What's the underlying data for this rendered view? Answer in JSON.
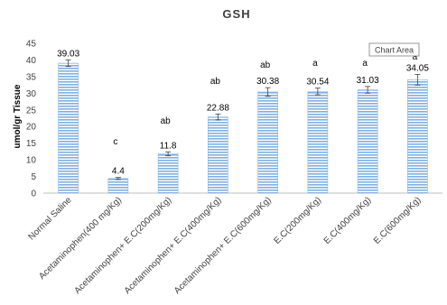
{
  "chart_data": {
    "type": "bar",
    "title": "GSH",
    "ylabel": "umol/gr Tissue",
    "xlabel": "",
    "ylim": [
      0,
      45
    ],
    "yticks": [
      0,
      5,
      10,
      15,
      20,
      25,
      30,
      35,
      40,
      45
    ],
    "categories": [
      "Normal Saline",
      "Acetaminophen(400 mg/Kg)",
      "Acetaminophen+ E.C(200mg/Kg)",
      "Acetaminophen+ E.C(400mg/Kg)",
      "Acetaminophen+ E.C(600mg/Kg)",
      "E.C(200mg/Kg)",
      "E.C(400mg/Kg)",
      "E.C(600mg/Kg)"
    ],
    "values": [
      39.03,
      4.4,
      11.8,
      22.88,
      30.38,
      30.54,
      31.03,
      34.05
    ],
    "value_labels": [
      "39.03",
      "4.4",
      "11.8",
      "22.88",
      "30.38",
      "30.54",
      "31.03",
      "34.05"
    ],
    "errors": [
      1.0,
      0.3,
      0.6,
      0.9,
      1.3,
      1.0,
      1.0,
      1.6
    ],
    "annotations": [
      "",
      "c",
      "ab",
      "ab",
      "ab",
      "a",
      "a",
      "a"
    ],
    "grid": false,
    "bar_color": "#9dc3e6",
    "bar_stripe_color": "#5b9bd5",
    "tooltip": "Chart Area"
  }
}
